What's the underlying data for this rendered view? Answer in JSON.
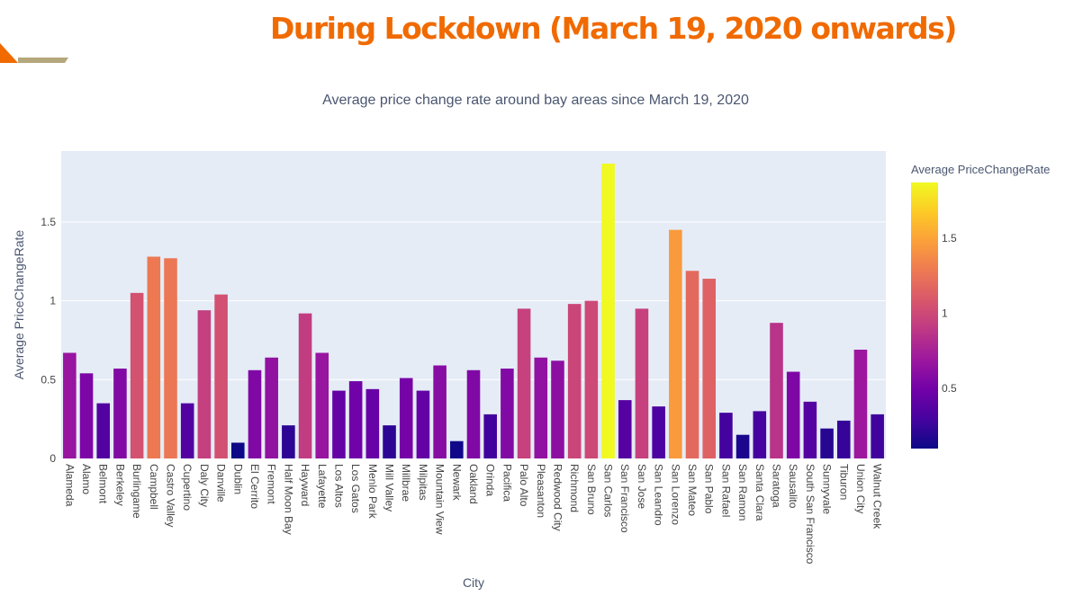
{
  "slide": {
    "title": "During Lockdown (March 19, 2020 onwards)",
    "accent_color": "#f06a00"
  },
  "chart_data": {
    "type": "bar",
    "title": "Average price change rate around bay areas since March 19, 2020",
    "xlabel": "City",
    "ylabel": "Average PriceChangeRate",
    "ylim": [
      0,
      1.95
    ],
    "yticks": [
      0,
      0.5,
      1,
      1.5
    ],
    "ytick_labels": [
      "0",
      "0.5",
      "1",
      "1.5"
    ],
    "grid": true,
    "plot_background": "#e5ecf6",
    "colorscale": "plasma",
    "colorbar": {
      "title": "Average PriceChangeRate",
      "range": [
        0.1,
        1.87
      ],
      "ticks": [
        0.5,
        1,
        1.5
      ],
      "tick_labels": [
        "0.5",
        "1",
        "1.5"
      ]
    },
    "categories": [
      "Alameda",
      "Alamo",
      "Belmont",
      "Berkeley",
      "Burlingame",
      "Campbell",
      "Castro Valley",
      "Cupertino",
      "Daly City",
      "Danville",
      "Dublin",
      "El Cerrito",
      "Fremont",
      "Half Moon Bay",
      "Hayward",
      "Lafayette",
      "Los Altos",
      "Los Gatos",
      "Menlo Park",
      "Mill Valley",
      "Millbrae",
      "Milpitas",
      "Mountain View",
      "Newark",
      "Oakland",
      "Orinda",
      "Pacifica",
      "Palo Alto",
      "Pleasanton",
      "Redwood City",
      "Richmond",
      "San Bruno",
      "San Carlos",
      "San Francisco",
      "San Jose",
      "San Leandro",
      "San Lorenzo",
      "San Mateo",
      "San Pablo",
      "San Rafael",
      "San Ramon",
      "Santa Clara",
      "Saratoga",
      "Sausalito",
      "South San Francisco",
      "Sunnyvale",
      "Tiburon",
      "Union City",
      "Walnut Creek"
    ],
    "values": [
      0.67,
      0.54,
      0.35,
      0.57,
      1.05,
      1.28,
      1.27,
      0.35,
      0.94,
      1.04,
      0.1,
      0.56,
      0.64,
      0.21,
      0.92,
      0.67,
      0.43,
      0.49,
      0.44,
      0.21,
      0.51,
      0.43,
      0.59,
      0.11,
      0.56,
      0.28,
      0.57,
      0.95,
      0.64,
      0.62,
      0.98,
      1.0,
      1.87,
      0.37,
      0.95,
      0.33,
      1.45,
      1.19,
      1.14,
      0.29,
      0.15,
      0.3,
      0.86,
      0.55,
      0.36,
      0.19,
      0.24,
      0.69,
      0.28
    ]
  }
}
